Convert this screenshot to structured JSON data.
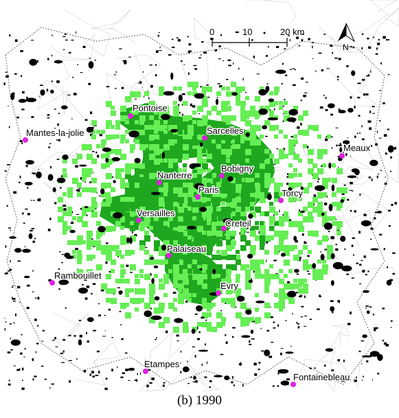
{
  "caption": "(b) 1990",
  "colors": {
    "urban_dense": "#1fa81f",
    "urban_new": "#66ee55",
    "built_1990": "#000000",
    "city_marker": "#e020e0",
    "boundary": "#666666"
  },
  "scale_bar": {
    "ticks": [
      "0",
      "10",
      "20 km"
    ]
  },
  "north_arrow": {
    "label": "N"
  },
  "cities": [
    {
      "id": "pontoise",
      "name": "Pontoise"
    },
    {
      "id": "mantes",
      "name": "Mantes-la-jolie"
    },
    {
      "id": "sarcelles",
      "name": "Sarcelles"
    },
    {
      "id": "meaux",
      "name": "Meaux"
    },
    {
      "id": "bobigny",
      "name": "Bobigny"
    },
    {
      "id": "nanterre",
      "name": "Nanterre"
    },
    {
      "id": "paris",
      "name": "Paris"
    },
    {
      "id": "torcy",
      "name": "Torcy"
    },
    {
      "id": "versailles",
      "name": "Versailles"
    },
    {
      "id": "creteil",
      "name": "Creteil"
    },
    {
      "id": "palaiseau",
      "name": "Palaiseau"
    },
    {
      "id": "rambouillet",
      "name": "Rambouillet"
    },
    {
      "id": "evry",
      "name": "Evry"
    },
    {
      "id": "etampes",
      "name": "Etampes"
    },
    {
      "id": "fontainebleau",
      "name": "Fontainebleau"
    }
  ]
}
